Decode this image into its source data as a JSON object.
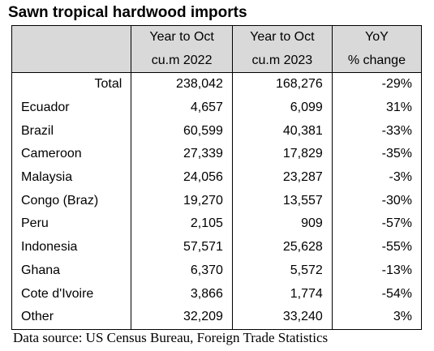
{
  "title": "Sawn tropical hardwood imports",
  "headers": {
    "row1": [
      "",
      "Year to Oct",
      "Year to Oct",
      "YoY"
    ],
    "row2": [
      "",
      "cu.m 2022",
      "cu.m 2023",
      "% change"
    ]
  },
  "rows": [
    {
      "country": "Total",
      "y2022": "238,042",
      "y2023": "168,276",
      "change": "-29%"
    },
    {
      "country": "Ecuador",
      "y2022": "4,657",
      "y2023": "6,099",
      "change": "31%"
    },
    {
      "country": "Brazil",
      "y2022": "60,599",
      "y2023": "40,381",
      "change": "-33%"
    },
    {
      "country": "Cameroon",
      "y2022": "27,339",
      "y2023": "17,829",
      "change": "-35%"
    },
    {
      "country": "Malaysia",
      "y2022": "24,056",
      "y2023": "23,287",
      "change": "-3%"
    },
    {
      "country": "Congo (Braz)",
      "y2022": "19,270",
      "y2023": "13,557",
      "change": "-30%"
    },
    {
      "country": "Peru",
      "y2022": "2,105",
      "y2023": "909",
      "change": "-57%"
    },
    {
      "country": "Indonesia",
      "y2022": "57,571",
      "y2023": "25,628",
      "change": "-55%"
    },
    {
      "country": "Ghana",
      "y2022": "6,370",
      "y2023": "5,572",
      "change": "-13%"
    },
    {
      "country": "Cote d'Ivoire",
      "y2022": "3,866",
      "y2023": "1,774",
      "change": "-54%"
    },
    {
      "country": "Other",
      "y2022": "32,209",
      "y2023": "33,240",
      "change": "3%"
    }
  ],
  "source": "Data source: US Census Bureau, Foreign Trade Statistics"
}
